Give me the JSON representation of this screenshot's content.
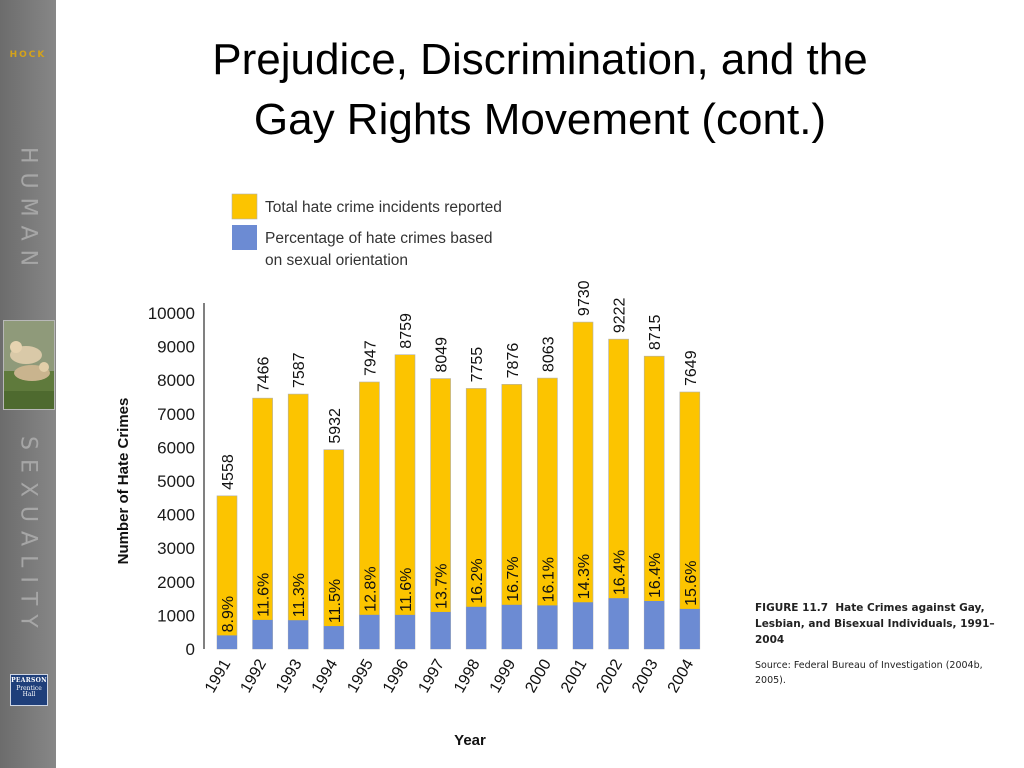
{
  "slide": {
    "title_line1": "Prejudice, Discrimination, and the",
    "title_line2": "Gay Rights Movement (cont.)"
  },
  "sidebar": {
    "author": "HOCK",
    "word1": "HUMAN",
    "word2": "SEXUALITY",
    "publisher_line1": "PEARSON",
    "publisher_line2": "Prentice Hall"
  },
  "figure": {
    "caption_label": "FIGURE 11.7",
    "caption_title": "Hate Crimes against Gay, Lesbian, and Bisexual Individuals, 1991–2004",
    "source": "Source: Federal Bureau of Investigation (2004b, 2005)."
  },
  "colors": {
    "total_bar": "#fcc400",
    "percentage_bar": "#6c8bd3",
    "bar_edge": "#b0b0b0"
  },
  "chart_data": {
    "type": "bar",
    "title": "",
    "xlabel": "Year",
    "ylabel": "Number of Hate Crimes",
    "ylim": [
      0,
      10000
    ],
    "yticks": [
      0,
      1000,
      2000,
      3000,
      4000,
      5000,
      6000,
      7000,
      8000,
      9000,
      10000
    ],
    "categories": [
      "1991",
      "1992",
      "1993",
      "1994",
      "1995",
      "1996",
      "1997",
      "1998",
      "1999",
      "2000",
      "2001",
      "2002",
      "2003",
      "2004"
    ],
    "legend_position": "top-left",
    "series": [
      {
        "name": "Total hate crime incidents reported",
        "values": [
          4558,
          7466,
          7587,
          5932,
          7947,
          8759,
          8049,
          7755,
          7876,
          8063,
          9730,
          9222,
          8715,
          7649
        ]
      },
      {
        "name": "Percentage of hate crimes based on sexual orientation",
        "values": [
          8.9,
          11.6,
          11.3,
          11.5,
          12.8,
          11.6,
          13.7,
          16.2,
          16.7,
          16.1,
          14.3,
          16.4,
          16.4,
          15.6
        ],
        "labels": [
          "8.9%",
          "11.6%",
          "11.3%",
          "11.5%",
          "12.8%",
          "11.6%",
          "13.7%",
          "16.2%",
          "16.7%",
          "16.1%",
          "14.3%",
          "16.4%",
          "16.4%",
          "15.6%"
        ]
      }
    ]
  }
}
